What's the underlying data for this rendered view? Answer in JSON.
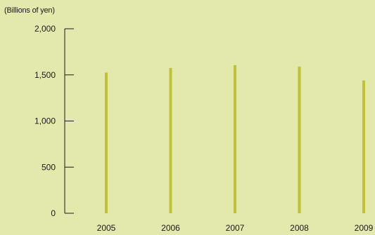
{
  "unit_label": "(Billions of yen)",
  "colors": {
    "background": "#e3e8ac",
    "bar": "#c2c133",
    "axis": "#1a1a1a",
    "text": "#1a1a1a"
  },
  "chart_data": {
    "type": "bar",
    "categories": [
      "2005",
      "2006",
      "2007",
      "2008",
      "2009"
    ],
    "values": [
      1525,
      1575,
      1605,
      1590,
      1440
    ],
    "y_ticks": [
      0,
      500,
      1000,
      1500,
      2000
    ],
    "y_tick_labels": [
      "0",
      "500",
      "1,000",
      "1,500",
      "2,000"
    ],
    "ylim": [
      0,
      2000
    ],
    "grid": false,
    "legend": "none",
    "title": "",
    "xlabel": "",
    "ylabel": "(Billions of yen)"
  }
}
